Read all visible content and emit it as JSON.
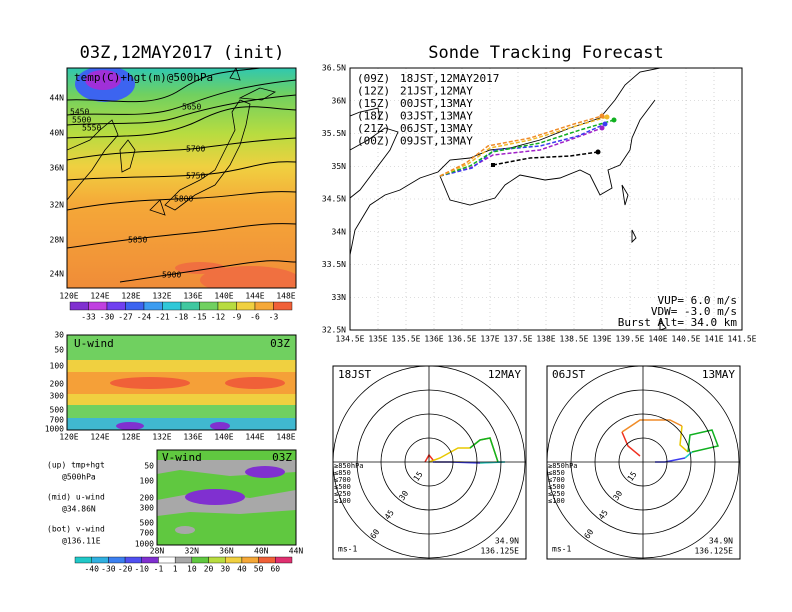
{
  "left": {
    "title": "03Z,12MAY2017 (init)",
    "label": "temp(C)+hgt(m)@500hPa",
    "lat_labels": [
      "44N",
      "40N",
      "36N",
      "32N",
      "28N",
      "24N"
    ],
    "lon_labels": [
      "120E",
      "124E",
      "128E",
      "132E",
      "136E",
      "140E",
      "144E",
      "148E"
    ],
    "contour_labels": [
      "5450",
      "5500",
      "5550",
      "5650",
      "5700",
      "5750",
      "5800",
      "5850",
      "5900"
    ],
    "colorbar": [
      -33,
      -30,
      -27,
      -24,
      -21,
      -18,
      -15,
      -12,
      -9,
      -6,
      -3
    ]
  },
  "u_panel": {
    "label": "U-wind",
    "time": "03Z",
    "p_labels": [
      "30",
      "50",
      "100",
      "200",
      "300",
      "500",
      "700",
      "1000"
    ],
    "lon_labels": [
      "120E",
      "124E",
      "128E",
      "132E",
      "136E",
      "140E",
      "144E",
      "148E"
    ]
  },
  "v_panel": {
    "label": "V-wind",
    "time": "03Z",
    "p_labels": [
      "50",
      "100",
      "200",
      "300",
      "500",
      "700",
      "1000"
    ],
    "lat_labels": [
      "28N",
      "32N",
      "36N",
      "40N",
      "44N"
    ],
    "colorbar": [
      -40,
      -30,
      -20,
      -10,
      -1,
      1,
      10,
      20,
      30,
      40,
      50,
      60
    ]
  },
  "notes": [
    "(up) tmp+hgt",
    "@500hPa",
    "(mid) u-wind",
    "@34.86N",
    "(bot) v-wind",
    "@136.11E"
  ],
  "right": {
    "title": "Sonde Tracking Forecast",
    "lat_labels": [
      "36.5N",
      "36N",
      "35.5N",
      "35N",
      "34.5N",
      "34N",
      "33.5N",
      "33N",
      "32.5N"
    ],
    "lon_labels": [
      "134.5E",
      "135E",
      "135.5E",
      "136E",
      "136.5E",
      "137E",
      "137.5E",
      "138E",
      "138.5E",
      "139E",
      "139.5E",
      "140E",
      "140.5E",
      "141E",
      "141.5E"
    ],
    "legend": [
      {
        "run": "(09Z)",
        "time": "18JST,12MAY2017",
        "color": "#000000"
      },
      {
        "run": "(12Z)",
        "time": "21JST,12MAY",
        "color": "#a020c8"
      },
      {
        "run": "(15Z)",
        "time": "00JST,13MAY",
        "color": "#3c3cf0"
      },
      {
        "run": "(18Z)",
        "time": "03JST,13MAY",
        "color": "#10b020"
      },
      {
        "run": "(21Z)",
        "time": "06JST,13MAY",
        "color": "#f0b828"
      },
      {
        "run": "(00Z)",
        "time": "09JST,13MAY",
        "color": "#f08c28"
      }
    ],
    "params": [
      "VUP= 6.0 m/s",
      "VDW= -3.0 m/s",
      "Burst Alt= 34.0 km"
    ]
  },
  "hodographs": [
    {
      "time": "18JST",
      "date": "12MAY",
      "levels": [
        "≥850hPa",
        "≤850",
        "≤700",
        "≤500",
        "≤250",
        "≤100"
      ],
      "rings": [
        "15",
        "30",
        "45",
        "60"
      ],
      "lat": "34.9N",
      "lon": "136.125E",
      "unit": "ms-1"
    },
    {
      "time": "06JST",
      "date": "13MAY",
      "levels": [
        "≥850hPa",
        "≤850",
        "≤700",
        "≤500",
        "≤250",
        "≤100"
      ],
      "rings": [
        "15",
        "30",
        "45",
        "60"
      ],
      "lat": "34.9N",
      "lon": "136.125E",
      "unit": "ms-1"
    }
  ]
}
